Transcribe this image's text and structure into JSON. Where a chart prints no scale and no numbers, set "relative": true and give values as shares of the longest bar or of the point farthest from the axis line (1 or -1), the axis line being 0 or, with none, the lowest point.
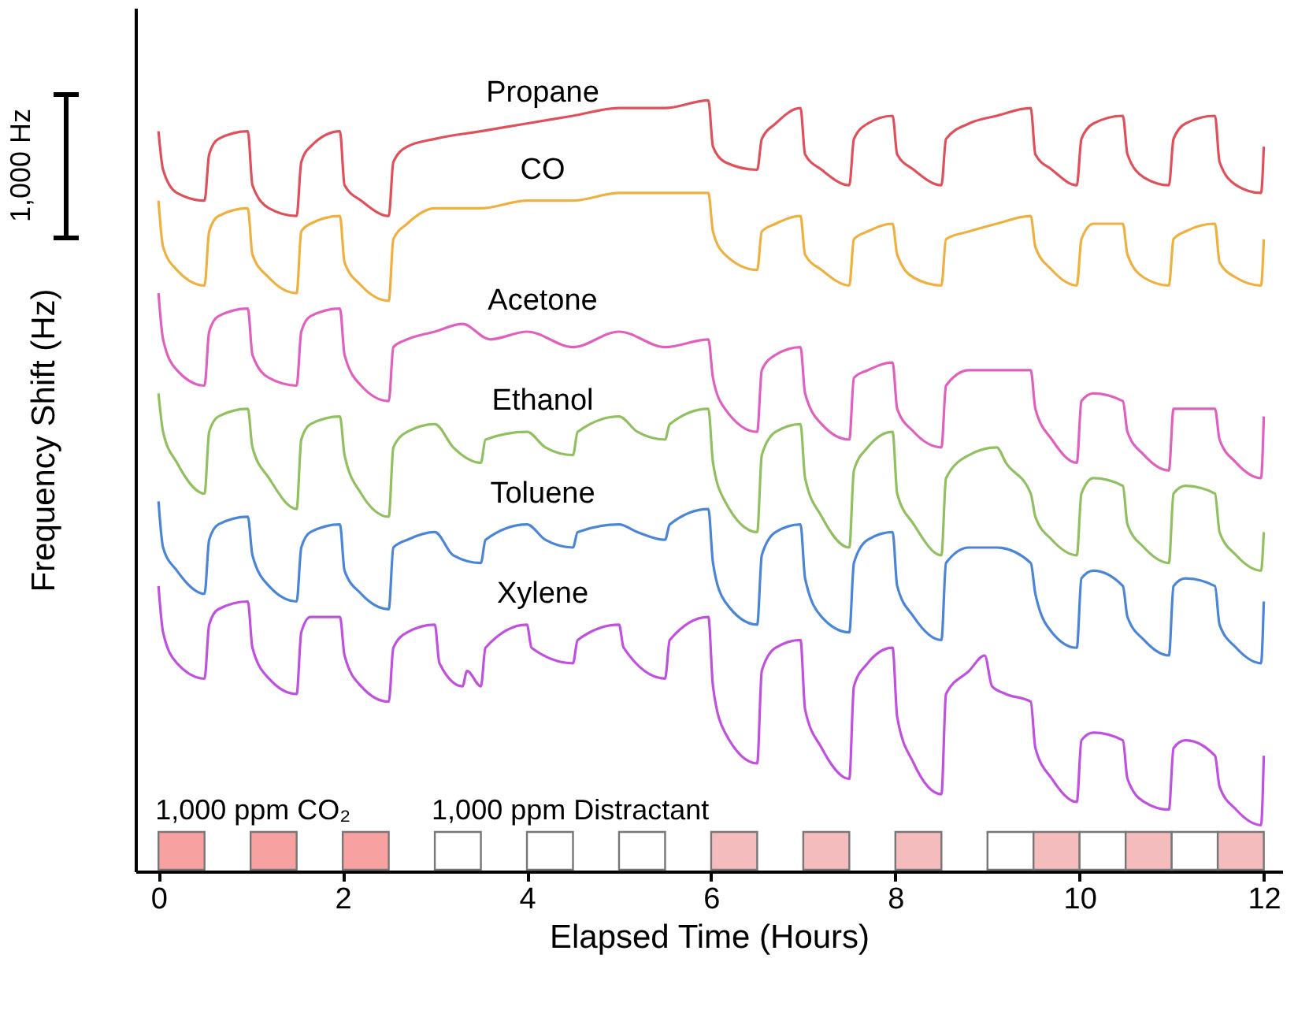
{
  "chart_data": {
    "type": "line",
    "relative": true,
    "xlabel": "Elapsed Time (Hours)",
    "ylabel": "Frequency Shift (Hz)",
    "xlim": [
      -0.25,
      12.2
    ],
    "xticks": [
      0,
      2,
      4,
      6,
      8,
      10,
      12
    ],
    "grid": false,
    "legend": false,
    "annotations": [
      "1,000 Hz"
    ],
    "series": [
      {
        "name": "Propane",
        "color": "#e0505a",
        "x": [
          0,
          0.05,
          0.2,
          0.5,
          0.55,
          0.65,
          0.97,
          1.02,
          1.2,
          1.5,
          1.55,
          1.65,
          1.97,
          2.02,
          2.2,
          2.5,
          2.55,
          2.7,
          3.0,
          3.5,
          4.0,
          4.5,
          5.0,
          5.5,
          5.97,
          6.02,
          6.15,
          6.5,
          6.55,
          6.7,
          6.97,
          7.02,
          7.2,
          7.5,
          7.55,
          7.7,
          7.97,
          8.02,
          8.2,
          8.5,
          8.55,
          8.8,
          9.1,
          9.47,
          9.52,
          9.7,
          9.97,
          10.02,
          10.15,
          10.47,
          10.52,
          10.7,
          10.97,
          11.02,
          11.15,
          11.47,
          11.52,
          11.7,
          11.97,
          12.0
        ],
        "values": [
          0.96,
          0.91,
          0.88,
          0.87,
          0.93,
          0.95,
          0.96,
          0.89,
          0.86,
          0.85,
          0.92,
          0.94,
          0.96,
          0.89,
          0.87,
          0.85,
          0.92,
          0.94,
          0.95,
          0.96,
          0.97,
          0.98,
          0.99,
          0.99,
          1.0,
          0.94,
          0.92,
          0.91,
          0.95,
          0.97,
          0.99,
          0.93,
          0.91,
          0.89,
          0.95,
          0.97,
          0.98,
          0.93,
          0.91,
          0.89,
          0.95,
          0.97,
          0.98,
          0.99,
          0.93,
          0.91,
          0.89,
          0.95,
          0.97,
          0.98,
          0.93,
          0.9,
          0.89,
          0.95,
          0.97,
          0.98,
          0.92,
          0.89,
          0.88,
          0.94
        ]
      },
      {
        "name": "CO",
        "color": "#f0b040",
        "x": [
          0,
          0.05,
          0.2,
          0.5,
          0.55,
          0.65,
          0.97,
          1.02,
          1.2,
          1.5,
          1.55,
          1.65,
          1.97,
          2.02,
          2.2,
          2.5,
          2.55,
          2.7,
          3.0,
          3.5,
          4.0,
          4.5,
          5.0,
          5.5,
          5.97,
          6.02,
          6.15,
          6.5,
          6.55,
          6.7,
          6.97,
          7.02,
          7.2,
          7.5,
          7.55,
          7.7,
          7.97,
          8.02,
          8.2,
          8.5,
          8.55,
          8.8,
          9.1,
          9.47,
          9.52,
          9.7,
          9.97,
          10.02,
          10.15,
          10.47,
          10.52,
          10.7,
          10.97,
          11.02,
          11.15,
          11.47,
          11.52,
          11.7,
          11.97,
          12.0
        ],
        "values": [
          0.87,
          0.81,
          0.78,
          0.76,
          0.83,
          0.85,
          0.86,
          0.8,
          0.77,
          0.75,
          0.83,
          0.84,
          0.85,
          0.79,
          0.76,
          0.74,
          0.82,
          0.84,
          0.86,
          0.86,
          0.87,
          0.87,
          0.88,
          0.88,
          0.88,
          0.83,
          0.8,
          0.78,
          0.83,
          0.84,
          0.85,
          0.8,
          0.78,
          0.76,
          0.82,
          0.83,
          0.84,
          0.8,
          0.77,
          0.76,
          0.82,
          0.83,
          0.84,
          0.85,
          0.81,
          0.78,
          0.76,
          0.82,
          0.84,
          0.84,
          0.8,
          0.77,
          0.76,
          0.82,
          0.83,
          0.84,
          0.79,
          0.77,
          0.76,
          0.82
        ]
      },
      {
        "name": "Acetone",
        "color": "#e060c0",
        "x": [
          0,
          0.05,
          0.2,
          0.5,
          0.55,
          0.65,
          0.97,
          1.02,
          1.2,
          1.5,
          1.55,
          1.65,
          1.97,
          2.02,
          2.2,
          2.5,
          2.55,
          2.7,
          3.0,
          3.3,
          3.6,
          4.0,
          4.5,
          5.0,
          5.5,
          5.97,
          6.02,
          6.15,
          6.5,
          6.55,
          6.7,
          6.97,
          7.02,
          7.2,
          7.5,
          7.55,
          7.7,
          7.97,
          8.02,
          8.2,
          8.5,
          8.55,
          8.8,
          9.1,
          9.47,
          9.52,
          9.7,
          9.97,
          10.02,
          10.15,
          10.47,
          10.52,
          10.7,
          10.97,
          11.02,
          11.15,
          11.47,
          11.52,
          11.7,
          11.97,
          12.0
        ],
        "values": [
          0.75,
          0.69,
          0.65,
          0.63,
          0.7,
          0.72,
          0.73,
          0.67,
          0.64,
          0.63,
          0.7,
          0.72,
          0.73,
          0.67,
          0.63,
          0.61,
          0.68,
          0.69,
          0.7,
          0.71,
          0.69,
          0.7,
          0.68,
          0.7,
          0.68,
          0.69,
          0.64,
          0.6,
          0.57,
          0.65,
          0.67,
          0.68,
          0.62,
          0.58,
          0.56,
          0.64,
          0.65,
          0.66,
          0.6,
          0.57,
          0.55,
          0.63,
          0.65,
          0.65,
          0.65,
          0.6,
          0.56,
          0.53,
          0.61,
          0.62,
          0.61,
          0.57,
          0.54,
          0.52,
          0.6,
          0.6,
          0.6,
          0.56,
          0.53,
          0.51,
          0.59
        ]
      },
      {
        "name": "Ethanol",
        "color": "#90c060",
        "x": [
          0,
          0.05,
          0.2,
          0.5,
          0.55,
          0.65,
          0.97,
          1.02,
          1.2,
          1.5,
          1.55,
          1.65,
          1.97,
          2.02,
          2.2,
          2.5,
          2.55,
          2.7,
          3.0,
          3.2,
          3.5,
          3.55,
          4.0,
          4.2,
          4.5,
          4.55,
          5.0,
          5.2,
          5.5,
          5.55,
          5.97,
          6.02,
          6.15,
          6.5,
          6.55,
          6.7,
          6.97,
          7.02,
          7.2,
          7.5,
          7.55,
          7.7,
          7.97,
          8.02,
          8.2,
          8.5,
          8.55,
          8.8,
          9.1,
          9.2,
          9.47,
          9.52,
          9.7,
          9.97,
          10.02,
          10.15,
          10.47,
          10.52,
          10.7,
          10.97,
          11.02,
          11.15,
          11.47,
          11.52,
          11.7,
          11.97,
          12.0
        ],
        "values": [
          0.62,
          0.57,
          0.53,
          0.49,
          0.57,
          0.59,
          0.6,
          0.55,
          0.51,
          0.47,
          0.56,
          0.58,
          0.59,
          0.54,
          0.49,
          0.46,
          0.55,
          0.57,
          0.58,
          0.55,
          0.53,
          0.56,
          0.57,
          0.55,
          0.54,
          0.57,
          0.59,
          0.57,
          0.56,
          0.58,
          0.6,
          0.53,
          0.48,
          0.44,
          0.54,
          0.57,
          0.58,
          0.51,
          0.46,
          0.42,
          0.52,
          0.55,
          0.57,
          0.49,
          0.45,
          0.41,
          0.51,
          0.54,
          0.55,
          0.53,
          0.49,
          0.46,
          0.43,
          0.41,
          0.49,
          0.51,
          0.5,
          0.45,
          0.42,
          0.4,
          0.49,
          0.5,
          0.49,
          0.44,
          0.41,
          0.39,
          0.44
        ]
      },
      {
        "name": "Toluene",
        "color": "#4a85d8",
        "x": [
          0,
          0.05,
          0.2,
          0.5,
          0.55,
          0.65,
          0.97,
          1.02,
          1.2,
          1.5,
          1.55,
          1.65,
          1.97,
          2.02,
          2.2,
          2.5,
          2.55,
          2.7,
          3.0,
          3.2,
          3.5,
          3.55,
          4.0,
          4.2,
          4.5,
          4.55,
          5.0,
          5.2,
          5.5,
          5.55,
          5.97,
          6.02,
          6.15,
          6.5,
          6.55,
          6.7,
          6.97,
          7.02,
          7.2,
          7.5,
          7.55,
          7.7,
          7.97,
          8.02,
          8.2,
          8.5,
          8.55,
          8.8,
          9.1,
          9.47,
          9.52,
          9.7,
          9.97,
          10.02,
          10.15,
          10.47,
          10.52,
          10.7,
          10.97,
          11.02,
          11.15,
          11.47,
          11.52,
          11.7,
          11.97,
          12.0
        ],
        "values": [
          0.48,
          0.42,
          0.39,
          0.36,
          0.43,
          0.45,
          0.46,
          0.41,
          0.37,
          0.35,
          0.42,
          0.44,
          0.45,
          0.39,
          0.36,
          0.34,
          0.42,
          0.43,
          0.44,
          0.41,
          0.4,
          0.43,
          0.45,
          0.43,
          0.42,
          0.44,
          0.45,
          0.44,
          0.43,
          0.45,
          0.47,
          0.4,
          0.35,
          0.32,
          0.41,
          0.44,
          0.45,
          0.38,
          0.33,
          0.31,
          0.4,
          0.43,
          0.44,
          0.37,
          0.33,
          0.3,
          0.4,
          0.42,
          0.42,
          0.4,
          0.36,
          0.31,
          0.29,
          0.38,
          0.39,
          0.37,
          0.33,
          0.3,
          0.28,
          0.37,
          0.38,
          0.37,
          0.32,
          0.29,
          0.27,
          0.35
        ]
      },
      {
        "name": "Xylene",
        "color": "#c050e0",
        "x": [
          0,
          0.05,
          0.2,
          0.5,
          0.55,
          0.65,
          0.97,
          1.02,
          1.2,
          1.5,
          1.55,
          1.65,
          1.97,
          2.02,
          2.2,
          2.5,
          2.55,
          2.7,
          3.0,
          3.05,
          3.3,
          3.35,
          3.5,
          3.55,
          4.0,
          4.05,
          4.5,
          4.55,
          5.0,
          5.05,
          5.5,
          5.55,
          5.97,
          6.02,
          6.15,
          6.5,
          6.55,
          6.7,
          6.97,
          7.02,
          7.2,
          7.5,
          7.55,
          7.7,
          7.97,
          8.02,
          8.2,
          8.5,
          8.55,
          8.8,
          8.97,
          9.05,
          9.2,
          9.47,
          9.52,
          9.7,
          9.97,
          10.02,
          10.15,
          10.47,
          10.52,
          10.7,
          10.97,
          11.02,
          11.15,
          11.47,
          11.52,
          11.7,
          11.97,
          12.0
        ],
        "values": [
          0.37,
          0.31,
          0.27,
          0.25,
          0.32,
          0.34,
          0.35,
          0.29,
          0.25,
          0.23,
          0.31,
          0.33,
          0.33,
          0.28,
          0.24,
          0.22,
          0.29,
          0.31,
          0.32,
          0.27,
          0.24,
          0.26,
          0.24,
          0.29,
          0.32,
          0.29,
          0.27,
          0.3,
          0.32,
          0.29,
          0.25,
          0.3,
          0.33,
          0.24,
          0.18,
          0.14,
          0.26,
          0.29,
          0.3,
          0.21,
          0.16,
          0.12,
          0.24,
          0.27,
          0.29,
          0.2,
          0.14,
          0.1,
          0.23,
          0.26,
          0.28,
          0.24,
          0.23,
          0.22,
          0.16,
          0.12,
          0.09,
          0.17,
          0.18,
          0.17,
          0.12,
          0.09,
          0.08,
          0.16,
          0.17,
          0.15,
          0.11,
          0.08,
          0.06,
          0.15
        ]
      }
    ],
    "bands": [
      {
        "axis": "x",
        "from": 0,
        "to": 0.5,
        "color": "#f7a1a1",
        "label": "1,000 ppm CO₂"
      },
      {
        "axis": "x",
        "from": 1,
        "to": 1.5,
        "color": "#f7a1a1"
      },
      {
        "axis": "x",
        "from": 2,
        "to": 2.5,
        "color": "#f7a1a1"
      },
      {
        "axis": "x",
        "from": 3,
        "to": 3.5,
        "color": "#ffffff",
        "label": "1,000 ppm Distractant"
      },
      {
        "axis": "x",
        "from": 4,
        "to": 4.5,
        "color": "#ffffff"
      },
      {
        "axis": "x",
        "from": 5,
        "to": 5.5,
        "color": "#ffffff"
      },
      {
        "axis": "x",
        "from": 6,
        "to": 6.5,
        "color": "#f4bcbc"
      },
      {
        "axis": "x",
        "from": 7,
        "to": 7.5,
        "color": "#f4bcbc"
      },
      {
        "axis": "x",
        "from": 8,
        "to": 8.5,
        "color": "#f4bcbc"
      },
      {
        "axis": "x",
        "from": 9,
        "to": 9.5,
        "color": "#ffffff"
      },
      {
        "axis": "x",
        "from": 9.5,
        "to": 10,
        "color": "#f4bcbc"
      },
      {
        "axis": "x",
        "from": 10,
        "to": 10.5,
        "color": "#ffffff"
      },
      {
        "axis": "x",
        "from": 10.5,
        "to": 11,
        "color": "#f4bcbc"
      },
      {
        "axis": "x",
        "from": 11,
        "to": 11.5,
        "color": "#ffffff"
      },
      {
        "axis": "x",
        "from": 11.5,
        "to": 12,
        "color": "#f4bcbc"
      }
    ]
  }
}
